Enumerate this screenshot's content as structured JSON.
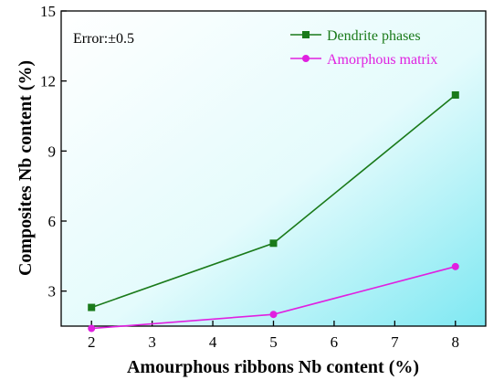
{
  "chart_data": {
    "type": "line",
    "x": [
      2,
      5,
      8
    ],
    "xlabel": "Amourphous ribbons Nb content (%)",
    "ylabel": "Composites Nb content (%)",
    "xlim": [
      1.5,
      8.5
    ],
    "ylim": [
      1.5,
      15
    ],
    "xticks": [
      2,
      3,
      4,
      5,
      6,
      7,
      8
    ],
    "yticks": [
      3,
      6,
      9,
      12,
      15
    ],
    "annotation": "Error:±0.5",
    "legend_position": "top-right",
    "grid": false,
    "background": "gradient cyan-white",
    "series": [
      {
        "name": "Dendrite phases",
        "values": [
          2.3,
          5.05,
          11.4
        ],
        "color": "#1a7a1a",
        "marker": "square"
      },
      {
        "name": "Amorphous matrix",
        "values": [
          1.4,
          2.0,
          4.05
        ],
        "color": "#e020e0",
        "marker": "circle"
      }
    ]
  }
}
